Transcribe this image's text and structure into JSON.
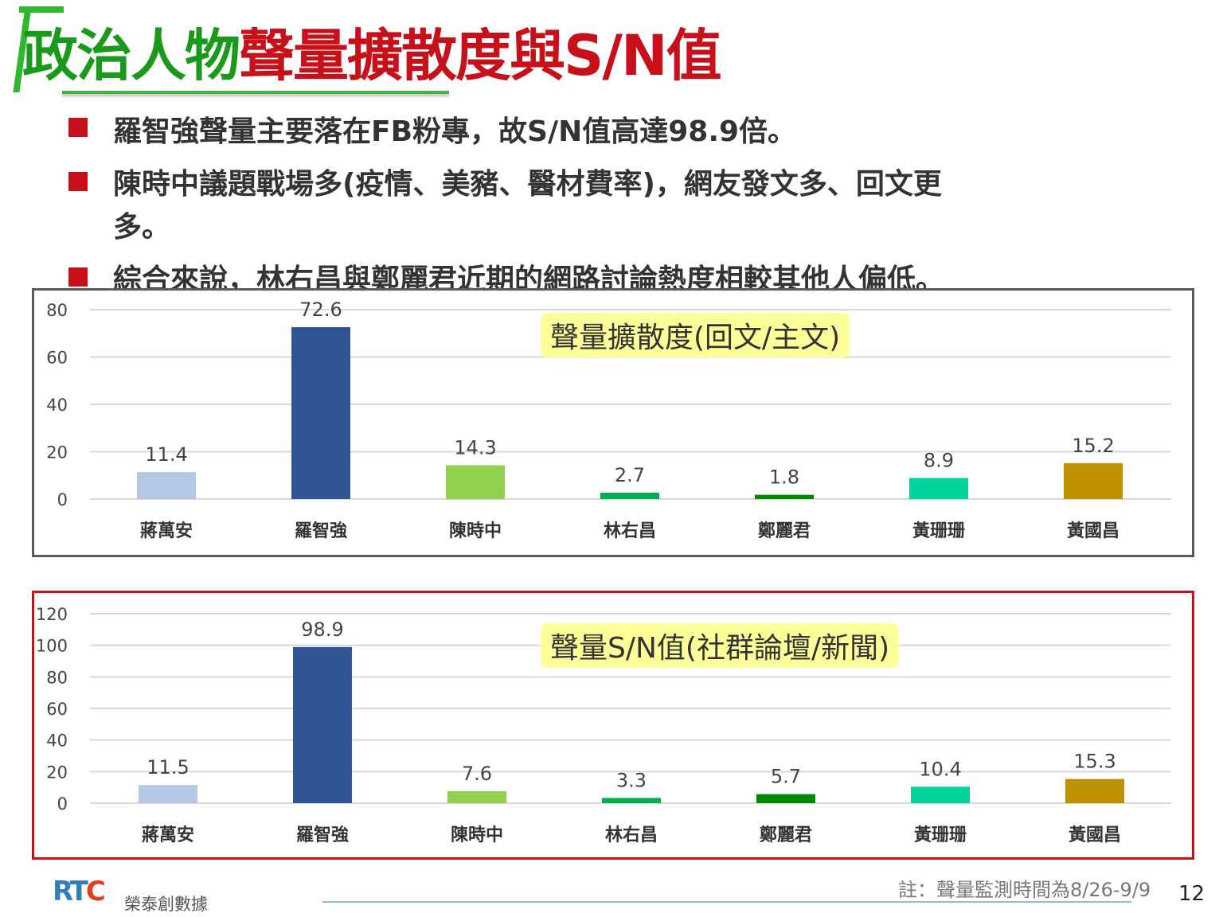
{
  "title": {
    "part1": "政治人物",
    "part2": "聲量擴散度與S/N值"
  },
  "bullets": [
    "羅智強聲量主要落在FB粉專，故S/N值高達98.9倍。",
    "陳時中議題戰場多(疫情、美豬、醫材費率)，網友發文多、回文更",
    "多。",
    "綜合來說，林右昌與鄭麗君近期的網路討論熱度相較其他人偏低。"
  ],
  "colors": [
    "#b4c7e7",
    "#2f5597",
    "#92d050",
    "#00b050",
    "#008a00",
    "#00d49c",
    "#bf9000"
  ],
  "chart_data": [
    {
      "type": "bar",
      "title": "聲量擴散度(回文/主文)",
      "categories": [
        "蔣萬安",
        "羅智強",
        "陳時中",
        "林右昌",
        "鄭麗君",
        "黃珊珊",
        "黃國昌"
      ],
      "values": [
        11.4,
        72.6,
        14.3,
        2.7,
        1.8,
        8.9,
        15.2
      ],
      "yticks": [
        0,
        20,
        40,
        60,
        80
      ],
      "ylim": [
        0,
        80
      ],
      "grid": true
    },
    {
      "type": "bar",
      "title": "聲量S/N值(社群論壇/新聞)",
      "categories": [
        "蔣萬安",
        "羅智強",
        "陳時中",
        "林右昌",
        "鄭麗君",
        "黃珊珊",
        "黃國昌"
      ],
      "values": [
        11.5,
        98.9,
        7.6,
        3.3,
        5.7,
        10.4,
        15.3
      ],
      "yticks": [
        0,
        20,
        40,
        60,
        80,
        100,
        120
      ],
      "ylim": [
        0,
        120
      ],
      "grid": true
    }
  ],
  "footer": {
    "logo": "RTC",
    "company": "榮泰創數據",
    "note": "註：聲量監測時間為8/26-9/9",
    "page": "12"
  }
}
